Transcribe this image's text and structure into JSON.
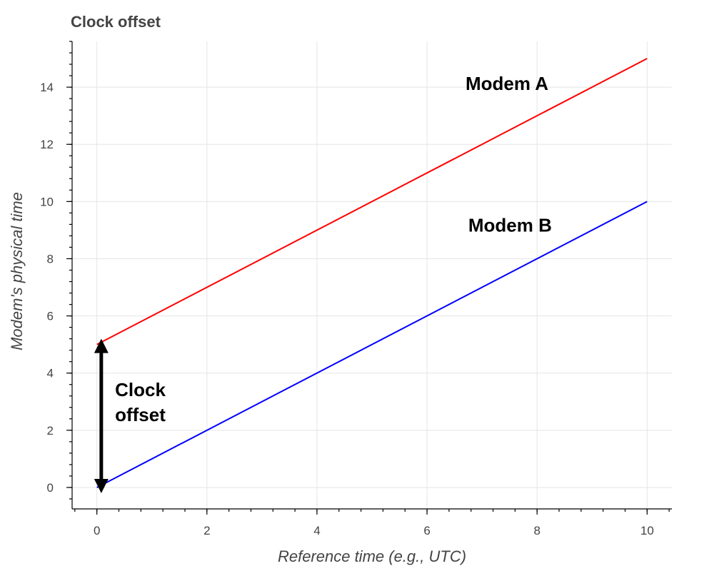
{
  "chart_data": {
    "type": "line",
    "title": "Clock offset",
    "xlabel": "Reference time (e.g., UTC)",
    "ylabel": "Modem's physical time",
    "xlim": [
      -0.45,
      10.45
    ],
    "ylim": [
      -0.75,
      15.6
    ],
    "xticks": [
      0,
      2,
      4,
      6,
      8,
      10
    ],
    "yticks": [
      0,
      2,
      4,
      6,
      8,
      10,
      12,
      14
    ],
    "x_minor_step": 0.4,
    "y_minor_step": 0.4,
    "grid": true,
    "series": [
      {
        "name": "Modem A",
        "color": "#ff0000",
        "x": [
          0,
          10
        ],
        "y": [
          5,
          15
        ]
      },
      {
        "name": "Modem B",
        "color": "#0000ff",
        "x": [
          0,
          10
        ],
        "y": [
          0,
          10
        ]
      }
    ],
    "annotations": [
      {
        "lines": [
          "Modem A"
        ],
        "x": 6.7,
        "y": 13.9
      },
      {
        "lines": [
          "Modem B"
        ],
        "x": 6.75,
        "y": 8.95
      },
      {
        "lines": [
          "Clock",
          "offset"
        ],
        "x": 0.33,
        "y": 3.2
      }
    ],
    "arrow": {
      "x": 0.08,
      "y_from": 0.0,
      "y_to": 5.0,
      "color": "#000000"
    }
  }
}
